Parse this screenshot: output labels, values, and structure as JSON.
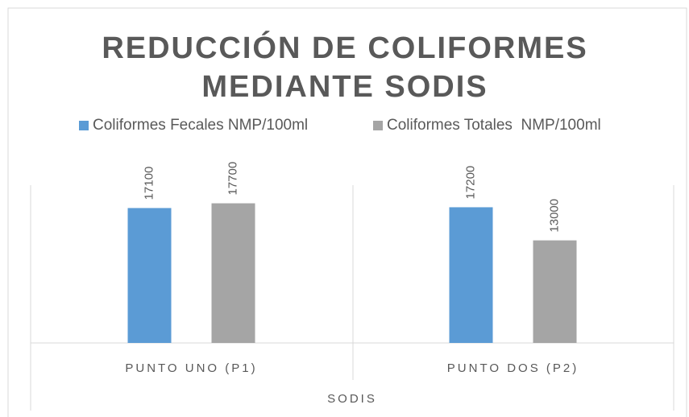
{
  "chart_data": {
    "type": "bar",
    "title": "REDUCCIÓN DE COLIFORMES MEDIANTE SODIS",
    "x_label": "SODIS",
    "categories": [
      "PUNTO UNO (P1)",
      "PUNTO DOS (P2)"
    ],
    "series": [
      {
        "name": "Coliformes Fecales NMP/100ml",
        "color": "#5b9bd5",
        "values": [
          17100,
          17200
        ]
      },
      {
        "name": "Coliformes Totales  NMP/100ml",
        "color": "#a5a5a5",
        "values": [
          17700,
          13000
        ]
      }
    ],
    "ylim": [
      0,
      20000
    ],
    "legend": "top"
  }
}
